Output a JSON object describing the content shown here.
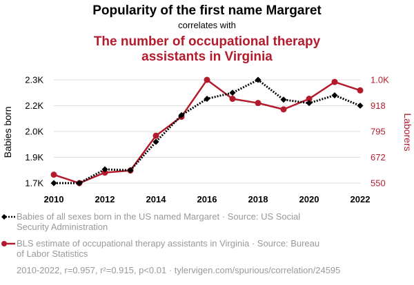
{
  "chart_data": {
    "type": "line",
    "title": "Popularity of the first name Margaret",
    "correlates_text": "correlates with",
    "subtitle_lines": [
      "The number of occupational therapy",
      "assistants in Virginia"
    ],
    "x": [
      2010,
      2011,
      2012,
      2013,
      2014,
      2015,
      2016,
      2017,
      2018,
      2019,
      2020,
      2021,
      2022
    ],
    "x_ticks": [
      "2010",
      "2012",
      "2014",
      "2016",
      "2018",
      "2020",
      "2022"
    ],
    "xlim": [
      2010,
      2022
    ],
    "left_axis": {
      "label": "Babies born",
      "ticks": [
        "1.7K",
        "1.9K",
        "2.0K",
        "2.2K",
        "2.3K"
      ],
      "tick_values": [
        1700,
        1850,
        2000,
        2150,
        2300
      ],
      "ylim": [
        1700,
        2300
      ]
    },
    "right_axis": {
      "label": "Laborers",
      "ticks": [
        "550",
        "672",
        "795",
        "918",
        "1.0K"
      ],
      "tick_values": [
        550,
        672,
        795,
        918,
        1040
      ],
      "ylim": [
        550,
        1040
      ]
    },
    "series": [
      {
        "name": "Babies of all sexes born in the US named Margaret",
        "axis": "left",
        "color": "#000000",
        "marker": "diamond",
        "dashed": true,
        "values": [
          1700,
          1700,
          1780,
          1775,
          1940,
          2095,
          2190,
          2225,
          2300,
          2185,
          2165,
          2210,
          2150
        ]
      },
      {
        "name": "BLS estimate of occupational therapy assistants in Virginia",
        "axis": "right",
        "color": "#b31b2c",
        "marker": "circle",
        "dashed": false,
        "values": [
          590,
          550,
          600,
          610,
          775,
          865,
          1040,
          950,
          930,
          900,
          950,
          1030,
          990
        ]
      }
    ],
    "legend": [
      {
        "lines": [
          "Babies of all sexes born in the US named Margaret · Source: US Social",
          "Security Administration"
        ]
      },
      {
        "lines": [
          "BLS estimate of occupational therapy assistants in Virginia · Source: Bureau",
          "of Labor Statistics"
        ]
      }
    ],
    "footer": "2010-2022, r=0.957, r²=0.915, p<0.01 · tylervigen.com/spurious/correlation/24595",
    "colors": {
      "red": "#b31b2c",
      "black": "#000000",
      "grid": "#dddddd",
      "legend_text": "#999999"
    }
  }
}
